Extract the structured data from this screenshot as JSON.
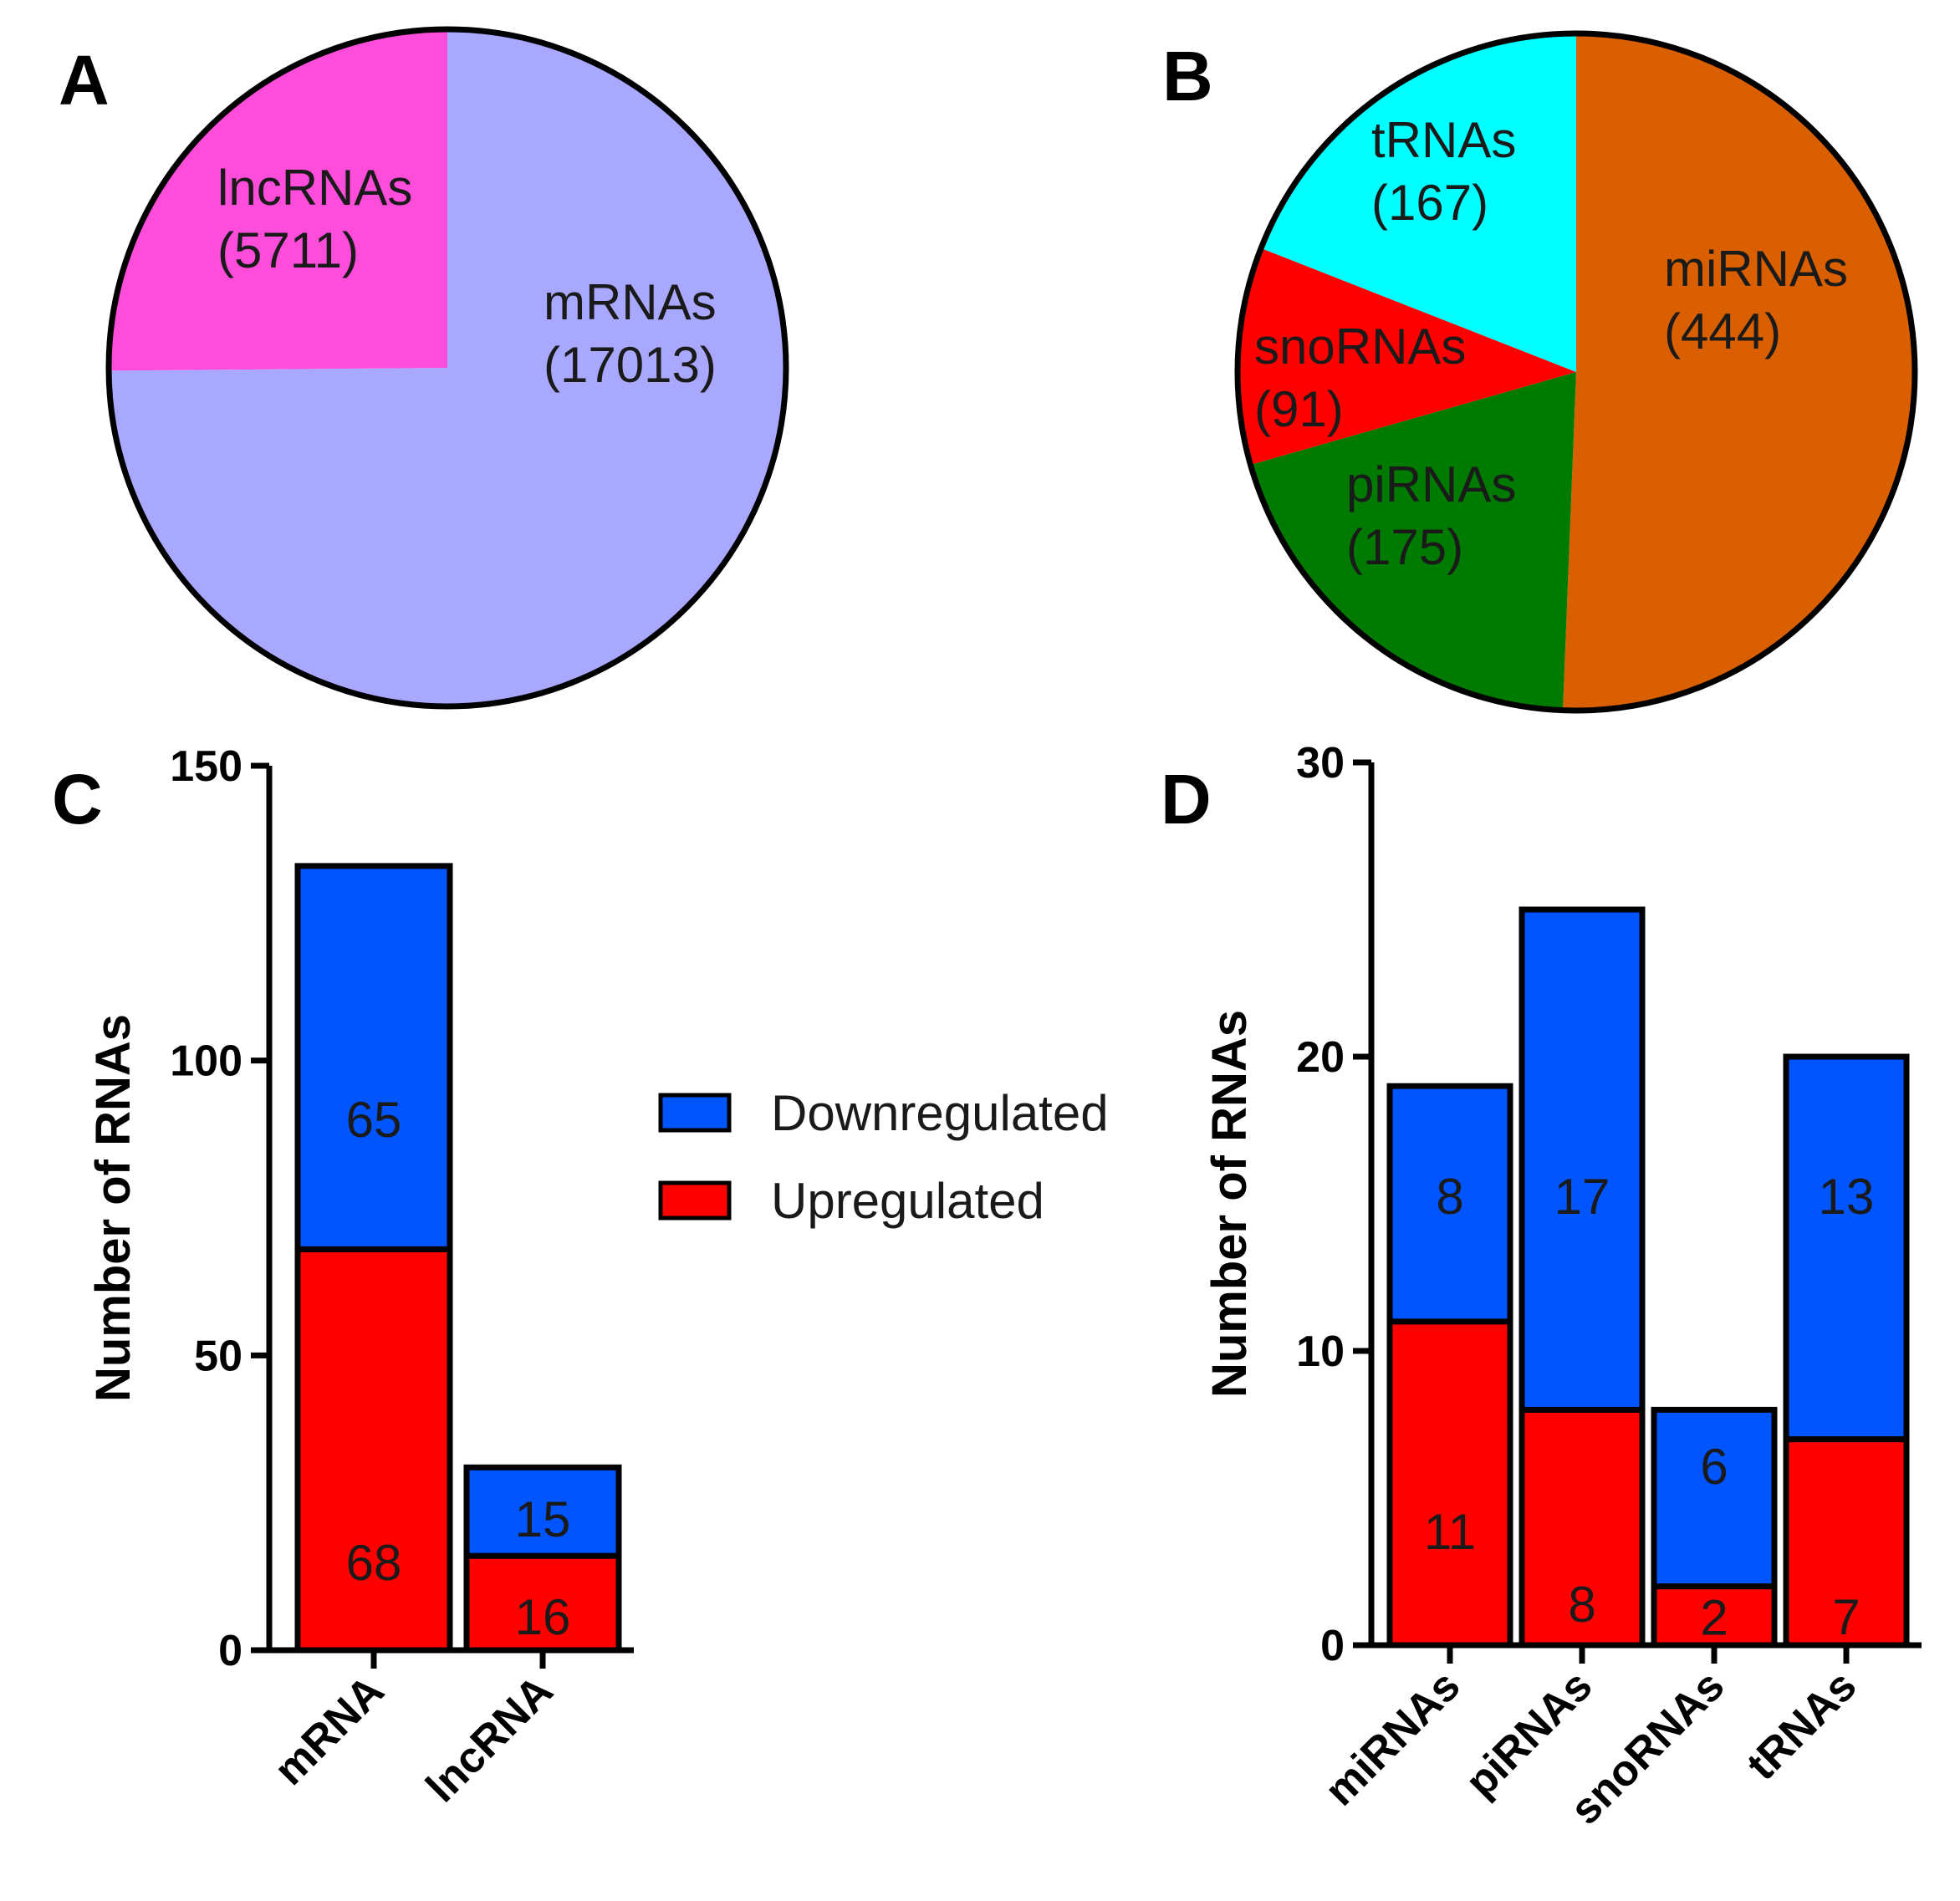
{
  "panels": {
    "a": "A",
    "b": "B",
    "c": "C",
    "d": "D"
  },
  "colors": {
    "mRNAs": "#a8a8ff",
    "lncRNAs": "#ff4ddb",
    "miRNAs": "#d95f00",
    "piRNAs": "#007a00",
    "snoRNAs": "#ff0000",
    "tRNAs": "#00ffff",
    "down": "#0055ff",
    "up": "#ff0000",
    "axis": "#000000"
  },
  "legend": [
    {
      "key": "down",
      "label": "Downregulated"
    },
    {
      "key": "up",
      "label": "Upregulated"
    }
  ],
  "chart_data": [
    {
      "panel": "A",
      "type": "pie",
      "slices": [
        {
          "name": "mRNAs",
          "value": 17013,
          "label": "mRNAs",
          "count_text": "(17013)"
        },
        {
          "name": "lncRNAs",
          "value": 5711,
          "label": "lncRNAs",
          "count_text": "(5711)"
        }
      ]
    },
    {
      "panel": "B",
      "type": "pie",
      "slices": [
        {
          "name": "miRNAs",
          "value": 444,
          "label": "miRNAs",
          "count_text": "(444)"
        },
        {
          "name": "piRNAs",
          "value": 175,
          "label": "piRNAs",
          "count_text": "(175)"
        },
        {
          "name": "snoRNAs",
          "value": 91,
          "label": "snoRNAs",
          "count_text": "(91)"
        },
        {
          "name": "tRNAs",
          "value": 167,
          "label": "tRNAs",
          "count_text": "(167)"
        }
      ]
    },
    {
      "panel": "C",
      "type": "bar",
      "stacked": true,
      "categories": [
        "mRNA",
        "lncRNA"
      ],
      "series": [
        {
          "name": "Upregulated",
          "key": "up",
          "values": [
            68,
            16
          ]
        },
        {
          "name": "Downregulated",
          "key": "down",
          "values": [
            65,
            15
          ]
        }
      ],
      "ylabel": "Number of RNAs",
      "ylim": [
        0,
        150
      ],
      "yticks": [
        0,
        50,
        100,
        150
      ]
    },
    {
      "panel": "D",
      "type": "bar",
      "stacked": true,
      "categories": [
        "miRNAs",
        "piRNAs",
        "snoRNAs",
        "tRNAs"
      ],
      "series": [
        {
          "name": "Upregulated",
          "key": "up",
          "values": [
            11,
            8,
            2,
            7
          ]
        },
        {
          "name": "Downregulated",
          "key": "down",
          "values": [
            8,
            17,
            6,
            13
          ]
        }
      ],
      "ylabel": "Number of RNAs",
      "ylim": [
        0,
        30
      ],
      "yticks": [
        0,
        10,
        20,
        30
      ]
    }
  ]
}
